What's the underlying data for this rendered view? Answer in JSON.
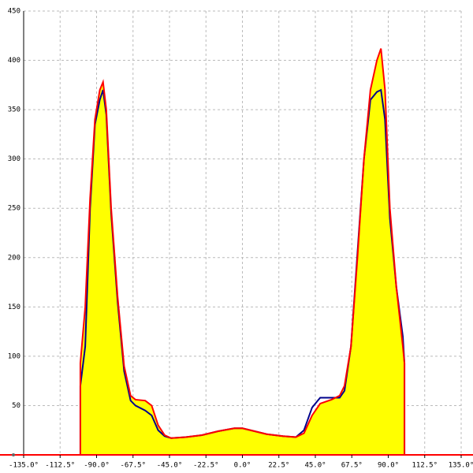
{
  "chart_data": {
    "type": "area",
    "x": [
      -100,
      -100,
      -97,
      -94,
      -91,
      -88,
      -86,
      -84,
      -81,
      -77,
      -73,
      -69,
      -66,
      -60,
      -56,
      -52,
      -48,
      -44,
      -35,
      -25,
      -15,
      -5,
      0,
      5,
      15,
      25,
      33,
      38,
      43,
      48,
      55,
      60,
      63,
      67,
      71,
      75,
      79,
      83,
      85.5,
      88,
      91,
      95,
      99,
      100,
      100
    ],
    "series": [
      {
        "color": "#ff0000",
        "fill": "#ffff00",
        "values": [
          0,
          93,
          150,
          260,
          340,
          370,
          378,
          350,
          250,
          160,
          90,
          60,
          56,
          55,
          50,
          30,
          20,
          17,
          18,
          20,
          24,
          27,
          27,
          25,
          21,
          19,
          18,
          22,
          40,
          52,
          56,
          60,
          70,
          110,
          200,
          300,
          370,
          400,
          412,
          370,
          250,
          170,
          110,
          93,
          0
        ]
      },
      {
        "color": "#00008b",
        "values": [
          0,
          70,
          110,
          250,
          335,
          360,
          370,
          345,
          245,
          155,
          85,
          55,
          50,
          45,
          40,
          25,
          19,
          17,
          18,
          20,
          24,
          27,
          27,
          25,
          21,
          19,
          18,
          25,
          48,
          58,
          58,
          58,
          65,
          110,
          205,
          300,
          360,
          368,
          370,
          340,
          240,
          170,
          120,
          93,
          0
        ]
      }
    ],
    "xlim": [
      -135,
      135
    ],
    "xticks": [
      {
        "value": -135,
        "label": "-135.0°"
      },
      {
        "value": -112.5,
        "label": "-112.5°"
      },
      {
        "value": -90,
        "label": "-90.0°"
      },
      {
        "value": -67.5,
        "label": "-67.5°"
      },
      {
        "value": -45,
        "label": "-45.0°"
      },
      {
        "value": -22.5,
        "label": "-22.5°"
      },
      {
        "value": 0,
        "label": "0.0°"
      },
      {
        "value": 22.5,
        "label": "22.5°"
      },
      {
        "value": 45,
        "label": "45.0°"
      },
      {
        "value": 67.5,
        "label": "67.5°"
      },
      {
        "value": 90,
        "label": "90.0°"
      },
      {
        "value": 112.5,
        "label": "112.5°"
      },
      {
        "value": 135,
        "label": "135.0°"
      }
    ],
    "ylim": [
      0,
      450
    ],
    "yticks": [
      50,
      100,
      150,
      200,
      250,
      300,
      350,
      400,
      450
    ],
    "grid": true
  }
}
